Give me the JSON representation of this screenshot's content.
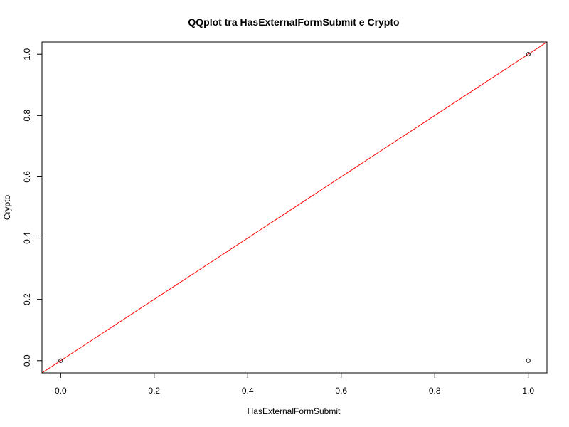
{
  "chart_data": {
    "type": "scatter",
    "title": "QQplot tra HasExternalFormSubmit e Crypto",
    "xlabel": "HasExternalFormSubmit",
    "ylabel": "Crypto",
    "xlim": [
      -0.04,
      1.04
    ],
    "ylim": [
      -0.04,
      1.04
    ],
    "x_ticks": [
      0.0,
      0.2,
      0.4,
      0.6,
      0.8,
      1.0
    ],
    "x_tick_labels": [
      "0.0",
      "0.2",
      "0.4",
      "0.6",
      "0.8",
      "1.0"
    ],
    "y_ticks": [
      0.0,
      0.2,
      0.4,
      0.6,
      0.8,
      1.0
    ],
    "y_tick_labels": [
      "0.0",
      "0.2",
      "0.4",
      "0.6",
      "0.8",
      "1.0"
    ],
    "points": [
      {
        "x": 0,
        "y": 0
      },
      {
        "x": 1,
        "y": 1
      },
      {
        "x": 1,
        "y": 0
      }
    ],
    "reference_line": {
      "intercept": 0,
      "slope": 1,
      "color": "#ff0000"
    },
    "point_color": "#000000",
    "grid": false,
    "legend": "none"
  }
}
